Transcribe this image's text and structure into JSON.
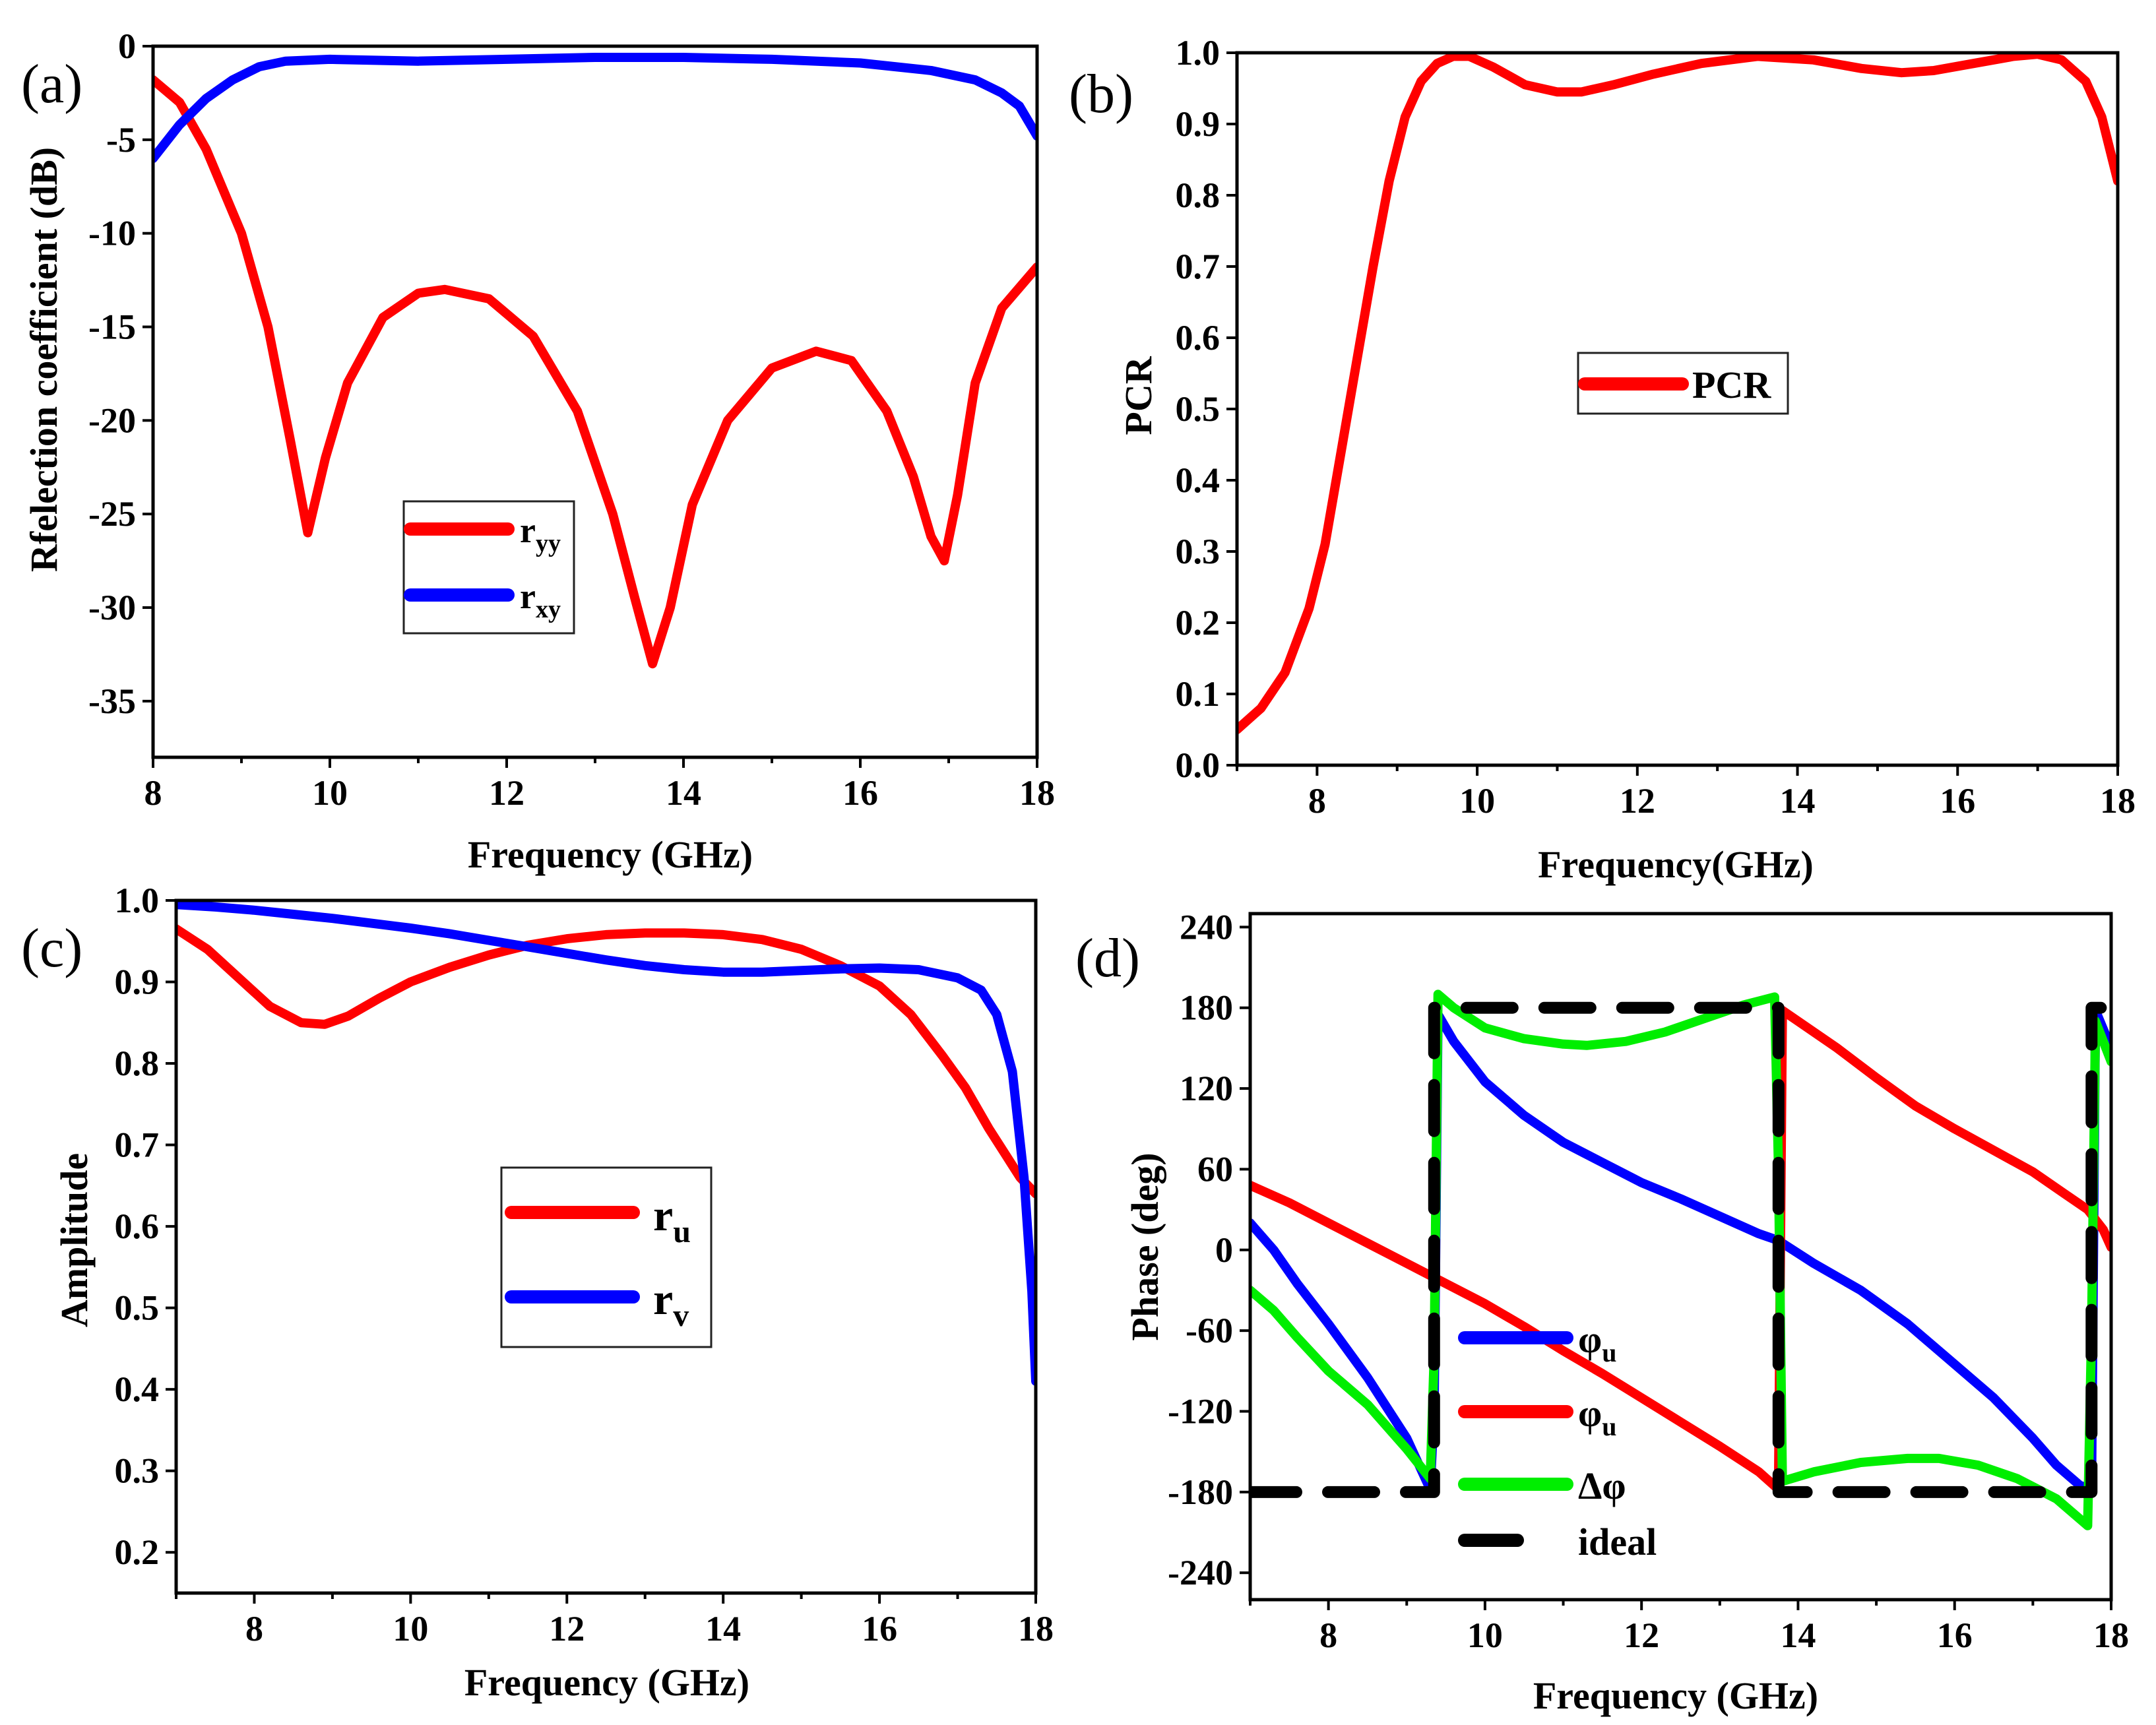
{
  "chart_data": [
    {
      "id": "a",
      "panel_label": "(a)",
      "type": "line",
      "xlabel": "Frequency (GHz)",
      "ylabel": "Rfelection coefficient (dB)",
      "xlim": [
        8,
        18
      ],
      "ylim": [
        -38,
        0
      ],
      "xticks": [
        8,
        10,
        12,
        14,
        16,
        18
      ],
      "yticks": [
        0,
        -5,
        -10,
        -15,
        -20,
        -25,
        -30,
        -35
      ],
      "legend_position": "center",
      "series": [
        {
          "name": "r",
          "sub": "yy",
          "color": "#ff0000",
          "x": [
            8,
            8.3,
            8.6,
            9.0,
            9.3,
            9.55,
            9.75,
            9.95,
            10.2,
            10.6,
            11.0,
            11.3,
            11.8,
            12.3,
            12.8,
            13.2,
            13.45,
            13.65,
            13.85,
            14.1,
            14.5,
            15.0,
            15.5,
            15.9,
            16.3,
            16.6,
            16.8,
            16.95,
            17.1,
            17.3,
            17.6,
            18
          ],
          "y": [
            -1.8,
            -3,
            -5.5,
            -10,
            -15,
            -21,
            -26,
            -22,
            -18,
            -14.5,
            -13.2,
            -13,
            -13.5,
            -15.5,
            -19.5,
            -25,
            -29.5,
            -33,
            -30,
            -24.5,
            -20,
            -17.2,
            -16.3,
            -16.8,
            -19.5,
            -23,
            -26.2,
            -27.5,
            -24,
            -18,
            -14,
            -11.8
          ]
        },
        {
          "name": "r",
          "sub": "xy",
          "color": "#0000ff",
          "x": [
            8,
            8.3,
            8.6,
            8.9,
            9.2,
            9.5,
            10,
            11,
            12,
            13,
            14,
            15,
            16,
            16.8,
            17.3,
            17.6,
            17.8,
            18
          ],
          "y": [
            -6,
            -4.2,
            -2.8,
            -1.8,
            -1.1,
            -0.8,
            -0.7,
            -0.8,
            -0.7,
            -0.6,
            -0.6,
            -0.7,
            -0.9,
            -1.3,
            -1.8,
            -2.5,
            -3.2,
            -4.8
          ]
        }
      ]
    },
    {
      "id": "b",
      "panel_label": "(b)",
      "type": "line",
      "xlabel": "Frequency(GHz)",
      "ylabel": "PCR",
      "xlim": [
        7,
        18
      ],
      "ylim": [
        0,
        1.0
      ],
      "xticks": [
        8,
        10,
        12,
        14,
        16,
        18
      ],
      "yticks": [
        0.0,
        0.1,
        0.2,
        0.3,
        0.4,
        0.5,
        0.6,
        0.7,
        0.8,
        0.9,
        1.0
      ],
      "ytick_labels": [
        "0.0",
        "0.1",
        "0.2",
        "0.3",
        "0.4",
        "0.5",
        "0.6",
        "0.7",
        "0.8",
        "0.9",
        "1.0"
      ],
      "legend_position": "center",
      "series": [
        {
          "name": "PCR",
          "color": "#ff0000",
          "x": [
            7,
            7.3,
            7.6,
            7.9,
            8.1,
            8.3,
            8.5,
            8.7,
            8.9,
            9.1,
            9.3,
            9.5,
            9.7,
            9.9,
            10.2,
            10.6,
            11.0,
            11.3,
            11.7,
            12.2,
            12.8,
            13.5,
            14.2,
            14.8,
            15.3,
            15.7,
            16.2,
            16.7,
            17.0,
            17.3,
            17.6,
            17.8,
            18
          ],
          "y": [
            0.05,
            0.08,
            0.13,
            0.22,
            0.31,
            0.44,
            0.57,
            0.7,
            0.82,
            0.91,
            0.96,
            0.985,
            0.995,
            0.995,
            0.98,
            0.955,
            0.945,
            0.945,
            0.955,
            0.97,
            0.985,
            0.995,
            0.99,
            0.978,
            0.972,
            0.975,
            0.985,
            0.995,
            0.998,
            0.99,
            0.96,
            0.91,
            0.82
          ]
        }
      ]
    },
    {
      "id": "c",
      "panel_label": "(c)",
      "type": "line",
      "xlabel": "Frequency (GHz)",
      "ylabel": "Amplitude",
      "xlim": [
        7,
        18
      ],
      "ylim": [
        0.15,
        1.0
      ],
      "xticks": [
        8,
        10,
        12,
        14,
        16,
        18
      ],
      "yticks": [
        0.2,
        0.3,
        0.4,
        0.5,
        0.6,
        0.7,
        0.8,
        0.9,
        1.0
      ],
      "ytick_labels": [
        "0.2",
        "0.3",
        "0.4",
        "0.5",
        "0.6",
        "0.7",
        "0.8",
        "0.9",
        "1.0"
      ],
      "legend_position": "center",
      "series": [
        {
          "name": "r",
          "sub": "u",
          "color": "#ff0000",
          "x": [
            7,
            7.4,
            7.8,
            8.2,
            8.6,
            8.9,
            9.2,
            9.6,
            10,
            10.5,
            11,
            11.5,
            12,
            12.5,
            13,
            13.5,
            14,
            14.5,
            15,
            15.5,
            16,
            16.4,
            16.8,
            17.1,
            17.4,
            17.6,
            17.8,
            18
          ],
          "y": [
            0.965,
            0.94,
            0.905,
            0.87,
            0.85,
            0.848,
            0.858,
            0.88,
            0.9,
            0.918,
            0.933,
            0.945,
            0.953,
            0.958,
            0.96,
            0.96,
            0.958,
            0.952,
            0.94,
            0.92,
            0.895,
            0.86,
            0.81,
            0.77,
            0.72,
            0.69,
            0.66,
            0.64
          ]
        },
        {
          "name": "r",
          "sub": "v",
          "color": "#0000ff",
          "x": [
            7,
            7.5,
            8,
            8.5,
            9,
            9.5,
            10,
            10.5,
            11,
            11.5,
            12,
            12.5,
            13,
            13.5,
            14,
            14.5,
            15,
            15.5,
            16,
            16.5,
            17,
            17.3,
            17.5,
            17.7,
            17.85,
            17.95,
            18
          ],
          "y": [
            0.995,
            0.992,
            0.988,
            0.983,
            0.978,
            0.972,
            0.966,
            0.959,
            0.951,
            0.943,
            0.935,
            0.927,
            0.92,
            0.915,
            0.912,
            0.912,
            0.914,
            0.916,
            0.917,
            0.915,
            0.905,
            0.89,
            0.86,
            0.79,
            0.66,
            0.52,
            0.41
          ]
        }
      ]
    },
    {
      "id": "d",
      "panel_label": "(d)",
      "type": "line",
      "xlabel": "Frequency (GHz)",
      "ylabel": "Phase (deg)",
      "xlim": [
        7,
        18
      ],
      "ylim": [
        -260,
        250
      ],
      "xticks": [
        8,
        10,
        12,
        14,
        16,
        18
      ],
      "yticks": [
        240,
        180,
        120,
        60,
        0,
        -60,
        -120,
        -180,
        -240
      ],
      "legend_position": "center-left",
      "series": [
        {
          "name": "φ",
          "sub": "u",
          "color": "#0000ff",
          "x": [
            7,
            7.3,
            7.6,
            8.0,
            8.5,
            9.0,
            9.3,
            9.35,
            9.4,
            9.6,
            10,
            10.5,
            11,
            11.5,
            12,
            12.5,
            13,
            13.5,
            13.7,
            13.8,
            14.2,
            14.8,
            15.4,
            16,
            16.5,
            17,
            17.3,
            17.6,
            17.75,
            17.8,
            18
          ],
          "y": [
            20,
            0,
            -25,
            -55,
            -95,
            -140,
            -178,
            -120,
            175,
            155,
            125,
            100,
            80,
            65,
            50,
            38,
            25,
            12,
            8,
            5,
            -10,
            -30,
            -55,
            -85,
            -110,
            -140,
            -160,
            -175,
            -178,
            178,
            150
          ]
        },
        {
          "name": "φ",
          "sub": "u",
          "color": "#ff0000",
          "x": [
            7,
            7.5,
            8,
            8.5,
            9,
            9.5,
            10,
            10.5,
            11,
            11.5,
            12,
            12.5,
            13,
            13.5,
            13.75,
            13.8,
            14,
            14.5,
            15,
            15.5,
            16,
            16.5,
            17,
            17.4,
            17.7,
            17.9,
            18
          ],
          "y": [
            48,
            35,
            20,
            5,
            -10,
            -25,
            -40,
            -57,
            -75,
            -92,
            -110,
            -128,
            -146,
            -165,
            -178,
            178,
            170,
            150,
            128,
            107,
            90,
            74,
            58,
            42,
            30,
            15,
            2
          ]
        },
        {
          "name": "Δφ",
          "color": "#00ee00",
          "x": [
            7,
            7.3,
            7.6,
            8.0,
            8.5,
            9.0,
            9.3,
            9.35,
            9.4,
            9.6,
            10,
            10.5,
            11,
            11.3,
            11.8,
            12.3,
            12.8,
            13.3,
            13.7,
            13.75,
            13.8,
            14.2,
            14.8,
            15.4,
            15.8,
            16.3,
            16.8,
            17.3,
            17.7,
            17.75,
            17.8,
            18
          ],
          "y": [
            -30,
            -45,
            -65,
            -90,
            -115,
            -148,
            -170,
            -80,
            190,
            180,
            165,
            157,
            153,
            152,
            155,
            162,
            172,
            182,
            188,
            60,
            -172,
            -165,
            -158,
            -155,
            -155,
            -160,
            -170,
            -185,
            -205,
            -60,
            170,
            140
          ]
        },
        {
          "name": "ideal",
          "color": "#000000",
          "dashed": true,
          "x": [
            7,
            9.35,
            9.35,
            13.75,
            13.75,
            17.75,
            17.75,
            18
          ],
          "y": [
            -180,
            -180,
            180,
            180,
            -180,
            -180,
            180,
            180
          ]
        }
      ]
    }
  ]
}
